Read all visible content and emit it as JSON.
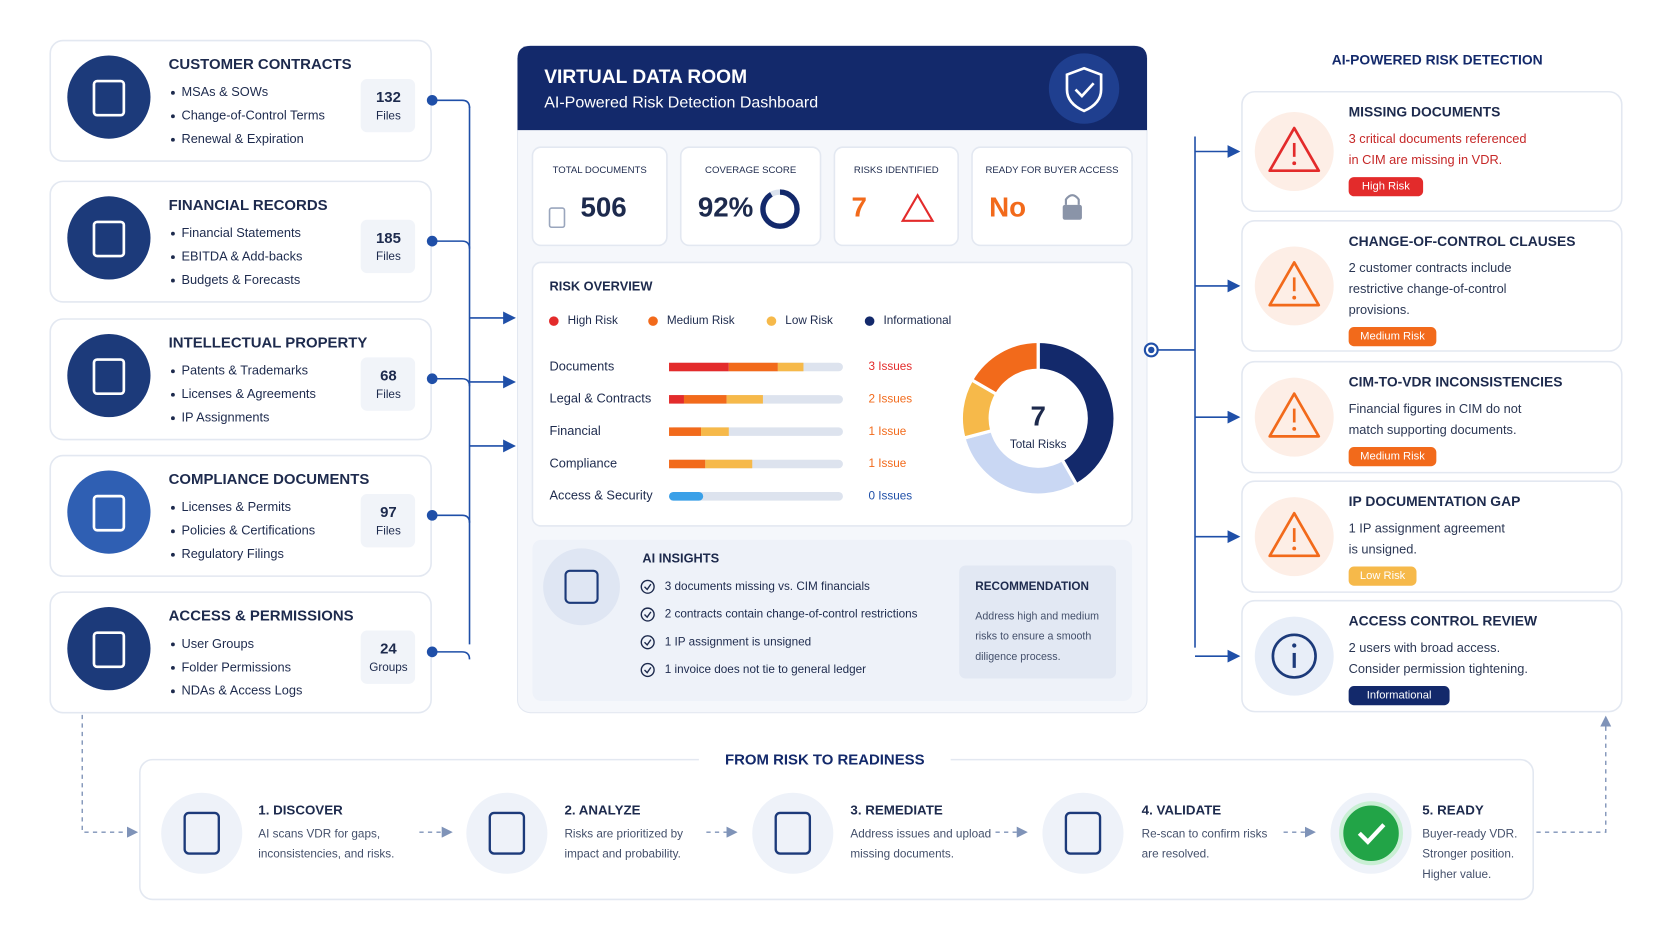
{
  "left_panels": [
    {
      "title": "CUSTOMER CONTRACTS",
      "items": [
        "MSAs & SOWs",
        "Change-of-Control Terms",
        "Renewal & Expiration"
      ],
      "count": 132,
      "unit": "Files"
    },
    {
      "title": "FINANCIAL RECORDS",
      "items": [
        "Financial Statements",
        "EBITDA & Add-backs",
        "Budgets & Forecasts"
      ],
      "count": 185,
      "unit": "Files"
    },
    {
      "title": "INTELLECTUAL PROPERTY",
      "items": [
        "Patents & Trademarks",
        "Licenses & Agreements",
        "IP Assignments"
      ],
      "count": 68,
      "unit": "Files"
    },
    {
      "title": "COMPLIANCE DOCUMENTS",
      "items": [
        "Licenses & Permits",
        "Policies & Certifications",
        "Regulatory Filings"
      ],
      "count": 97,
      "unit": "Files"
    },
    {
      "title": "ACCESS & PERMISSIONS",
      "items": [
        "User Groups",
        "Folder Permissions",
        "NDAs & Access Logs"
      ],
      "count": 24,
      "unit": "Groups"
    }
  ],
  "dashboard": {
    "title": "VIRTUAL DATA ROOM",
    "subtitle": "AI-Powered Risk Detection Dashboard",
    "stats": [
      {
        "label": "TOTAL DOCUMENTS",
        "value": "506"
      },
      {
        "label": "COVERAGE SCORE",
        "value": "92%"
      },
      {
        "label": "RISKS IDENTIFIED",
        "value": "7"
      },
      {
        "label": "READY FOR BUYER ACCESS",
        "value": "No"
      }
    ],
    "risk_overview": {
      "title": "RISK OVERVIEW",
      "legend": [
        "High Risk",
        "Medium Risk",
        "Low Risk",
        "Informational"
      ],
      "rows": [
        {
          "name": "Documents",
          "issues": "3 Issues"
        },
        {
          "name": "Legal & Contracts",
          "issues": "2 Issues"
        },
        {
          "name": "Financial",
          "issues": "1 Issue"
        },
        {
          "name": "Compliance",
          "issues": "1 Issue"
        },
        {
          "name": "Access & Security",
          "issues": "0 Issues"
        }
      ],
      "total": "7",
      "total_label": "Total Risks"
    },
    "insights": {
      "title": "AI INSIGHTS",
      "items": [
        "3 documents missing vs. CIM financials",
        "2 contracts contain change-of-control restrictions",
        "1 IP assignment is unsigned",
        "1 invoice does not tie to general ledger"
      ],
      "recommendation_title": "RECOMMENDATION",
      "recommendation": [
        "Address high and medium",
        "risks to ensure a smooth",
        "diligence process."
      ]
    }
  },
  "detection": {
    "title": "AI-POWERED RISK DETECTION",
    "cards": [
      {
        "title": "MISSING DOCUMENTS",
        "text": [
          "3 critical documents referenced",
          "in CIM are missing in VDR."
        ],
        "badge": "High Risk"
      },
      {
        "title": "CHANGE-OF-CONTROL CLAUSES",
        "text": [
          "2 customer contracts include",
          "restrictive change-of-control",
          "provisions."
        ],
        "badge": "Medium Risk"
      },
      {
        "title": "CIM-TO-VDR INCONSISTENCIES",
        "text": [
          "Financial figures in CIM do not",
          "match supporting documents."
        ],
        "badge": "Medium Risk"
      },
      {
        "title": "IP DOCUMENTATION GAP",
        "text": [
          "1 IP assignment agreement",
          "is unsigned."
        ],
        "badge": "Low Risk"
      },
      {
        "title": "ACCESS CONTROL REVIEW",
        "text": [
          "2 users with broad access.",
          "Consider permission tightening."
        ],
        "badge": "Informational"
      }
    ]
  },
  "process": {
    "title": "FROM RISK TO READINESS",
    "steps": [
      {
        "title": "1. DISCOVER",
        "text": [
          "AI scans VDR for gaps,",
          "inconsistencies, and risks."
        ]
      },
      {
        "title": "2. ANALYZE",
        "text": [
          "Risks are prioritized by",
          "impact and probability."
        ]
      },
      {
        "title": "3. REMEDIATE",
        "text": [
          "Address issues and upload",
          "missing documents."
        ]
      },
      {
        "title": "4. VALIDATE",
        "text": [
          "Re-scan to confirm risks",
          "are resolved."
        ]
      },
      {
        "title": "5. READY",
        "text": [
          "Buyer-ready VDR.",
          "Stronger position.",
          "Higher value."
        ]
      }
    ]
  }
}
